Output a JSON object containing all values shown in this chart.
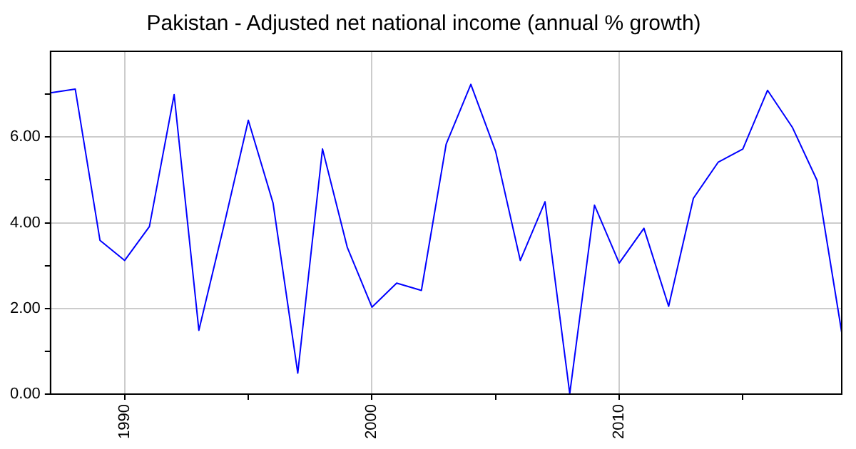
{
  "chart_data": {
    "type": "line",
    "title": "Pakistan - Adjusted net national income (annual % growth)",
    "x": [
      1987,
      1988,
      1989,
      1990,
      1991,
      1992,
      1993,
      1994,
      1995,
      1996,
      1997,
      1998,
      1999,
      2000,
      2001,
      2002,
      2003,
      2004,
      2005,
      2006,
      2007,
      2008,
      2009,
      2010,
      2011,
      2012,
      2013,
      2014,
      2015,
      2016,
      2017,
      2018,
      2019
    ],
    "series": [
      {
        "color": "#0000ff",
        "values": [
          7.03,
          7.12,
          3.59,
          3.12,
          3.91,
          6.99,
          1.49,
          3.9,
          6.39,
          4.46,
          0.49,
          5.72,
          3.43,
          2.03,
          2.59,
          2.42,
          5.83,
          7.23,
          5.67,
          3.12,
          4.49,
          0.01,
          4.41,
          3.06,
          3.87,
          2.05,
          4.57,
          5.41,
          5.72,
          7.09,
          6.23,
          4.99,
          1.44
        ]
      }
    ],
    "xlim": [
      1987,
      2019
    ],
    "xticks": [
      1990,
      {
        "value": 1995,
        "label": null
      },
      2000,
      {
        "value": 2005,
        "label": null
      },
      2010,
      {
        "value": 2015,
        "label": null
      }
    ],
    "ylim": [
      0,
      8
    ],
    "yticks": [
      {
        "value": 0,
        "label": "0.00"
      },
      {
        "value": 1,
        "label": null
      },
      {
        "value": 2,
        "label": "2.00"
      },
      {
        "value": 3,
        "label": null
      },
      {
        "value": 4,
        "label": "4.00"
      },
      {
        "value": 5,
        "label": null
      },
      {
        "value": 6,
        "label": "6.00"
      },
      {
        "value": 7,
        "label": null
      }
    ],
    "grid": true,
    "marker": "none",
    "line_style": "solid"
  }
}
